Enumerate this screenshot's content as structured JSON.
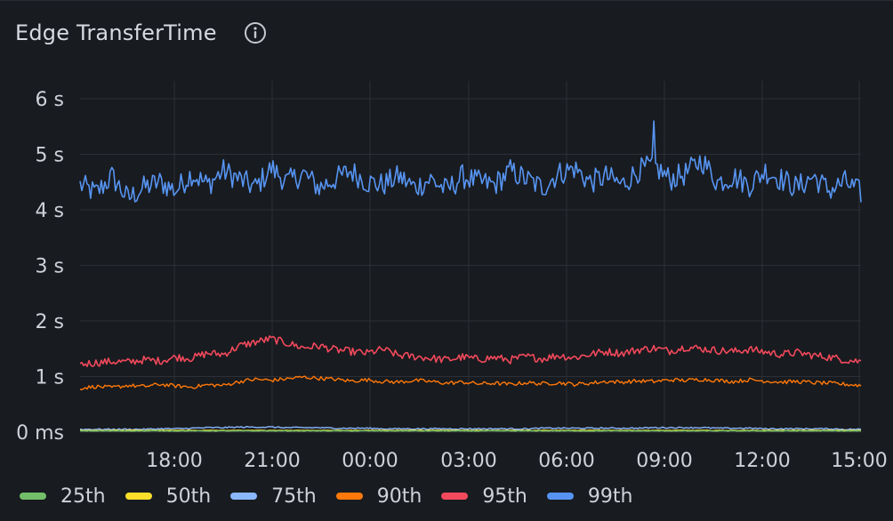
{
  "panel": {
    "title": "Edge TransferTime",
    "info_icon": "info-circle-icon"
  },
  "colors": {
    "background": "#181b1f",
    "grid": "#2c2f35",
    "tick_text": "#d0d1d9"
  },
  "chart_data": {
    "type": "line",
    "title": "Edge TransferTime",
    "xlabel": "",
    "ylabel": "",
    "x_range": [
      "15:15",
      "15:05"
    ],
    "x_ticks": [
      "18:00",
      "21:00",
      "00:00",
      "03:00",
      "06:00",
      "09:00",
      "12:00",
      "15:00"
    ],
    "y_ticks": [
      "0 ms",
      "1 s",
      "2 s",
      "3 s",
      "4 s",
      "5 s",
      "6 s"
    ],
    "ylim": [
      0,
      6
    ],
    "y_unit": "s",
    "grid": true,
    "legend_position": "bottom-left",
    "series": [
      {
        "name": "25th",
        "color": "#73bf69",
        "values": [
          0.02,
          0.02,
          0.02,
          0.02,
          0.02,
          0.02,
          0.02,
          0.02,
          0.02,
          0.02,
          0.02,
          0.02,
          0.02,
          0.02,
          0.02,
          0.02,
          0.02,
          0.02,
          0.02,
          0.02,
          0.02,
          0.02,
          0.02,
          0.02,
          0.02,
          0.02,
          0.02,
          0.02,
          0.02,
          0.02,
          0.02,
          0.02,
          0.02,
          0.02,
          0.02,
          0.02,
          0.02,
          0.02,
          0.02,
          0.02,
          0.02,
          0.02,
          0.02,
          0.02,
          0.02,
          0.02,
          0.02,
          0.02,
          0.02,
          0.02
        ]
      },
      {
        "name": "50th",
        "color": "#fade2a",
        "values": [
          0.03,
          0.03,
          0.03,
          0.03,
          0.03,
          0.03,
          0.03,
          0.03,
          0.03,
          0.03,
          0.03,
          0.03,
          0.03,
          0.03,
          0.03,
          0.03,
          0.03,
          0.03,
          0.03,
          0.03,
          0.03,
          0.03,
          0.03,
          0.03,
          0.03,
          0.03,
          0.03,
          0.03,
          0.03,
          0.03,
          0.03,
          0.03,
          0.03,
          0.03,
          0.03,
          0.03,
          0.03,
          0.03,
          0.03,
          0.03,
          0.03,
          0.03,
          0.03,
          0.03,
          0.03,
          0.03,
          0.03,
          0.03,
          0.03,
          0.03
        ]
      },
      {
        "name": "75th",
        "color": "#8ab8ff",
        "values": [
          0.05,
          0.05,
          0.05,
          0.05,
          0.05,
          0.06,
          0.06,
          0.07,
          0.08,
          0.08,
          0.09,
          0.09,
          0.09,
          0.08,
          0.08,
          0.08,
          0.07,
          0.07,
          0.07,
          0.06,
          0.06,
          0.06,
          0.06,
          0.06,
          0.06,
          0.06,
          0.06,
          0.06,
          0.06,
          0.07,
          0.07,
          0.07,
          0.07,
          0.07,
          0.07,
          0.07,
          0.08,
          0.08,
          0.08,
          0.08,
          0.07,
          0.07,
          0.07,
          0.06,
          0.06,
          0.06,
          0.06,
          0.06,
          0.05,
          0.05
        ]
      },
      {
        "name": "90th",
        "color": "#ff780a",
        "values": [
          0.79,
          0.82,
          0.8,
          0.84,
          0.82,
          0.86,
          0.83,
          0.81,
          0.85,
          0.84,
          0.91,
          0.95,
          0.93,
          0.96,
          0.99,
          0.97,
          0.95,
          0.92,
          0.94,
          0.91,
          0.9,
          0.93,
          0.91,
          0.88,
          0.9,
          0.87,
          0.88,
          0.86,
          0.89,
          0.87,
          0.89,
          0.86,
          0.88,
          0.91,
          0.9,
          0.92,
          0.91,
          0.94,
          0.93,
          0.95,
          0.93,
          0.91,
          0.94,
          0.92,
          0.9,
          0.91,
          0.89,
          0.88,
          0.86,
          0.84
        ]
      },
      {
        "name": "95th",
        "color": "#f2495c",
        "values": [
          1.22,
          1.25,
          1.27,
          1.26,
          1.3,
          1.28,
          1.35,
          1.33,
          1.42,
          1.4,
          1.55,
          1.62,
          1.68,
          1.6,
          1.52,
          1.55,
          1.48,
          1.45,
          1.42,
          1.49,
          1.38,
          1.36,
          1.33,
          1.3,
          1.35,
          1.31,
          1.34,
          1.3,
          1.36,
          1.32,
          1.38,
          1.34,
          1.4,
          1.45,
          1.42,
          1.48,
          1.51,
          1.46,
          1.53,
          1.5,
          1.47,
          1.45,
          1.49,
          1.44,
          1.4,
          1.43,
          1.38,
          1.35,
          1.3,
          1.27
        ]
      },
      {
        "name": "99th",
        "color": "#5794f2",
        "values": [
          4.45,
          4.3,
          4.6,
          4.2,
          4.4,
          4.5,
          4.35,
          4.65,
          4.45,
          4.7,
          4.55,
          4.4,
          4.75,
          4.5,
          4.65,
          4.4,
          4.55,
          4.7,
          4.5,
          4.45,
          4.6,
          4.4,
          4.55,
          4.35,
          4.6,
          4.5,
          4.45,
          4.7,
          4.55,
          4.4,
          4.65,
          4.75,
          4.5,
          4.6,
          4.45,
          4.7,
          4.8,
          4.55,
          4.65,
          4.9,
          4.5,
          4.6,
          4.45,
          4.7,
          4.55,
          4.4,
          4.6,
          4.35,
          4.5,
          4.3
        ]
      }
    ]
  }
}
